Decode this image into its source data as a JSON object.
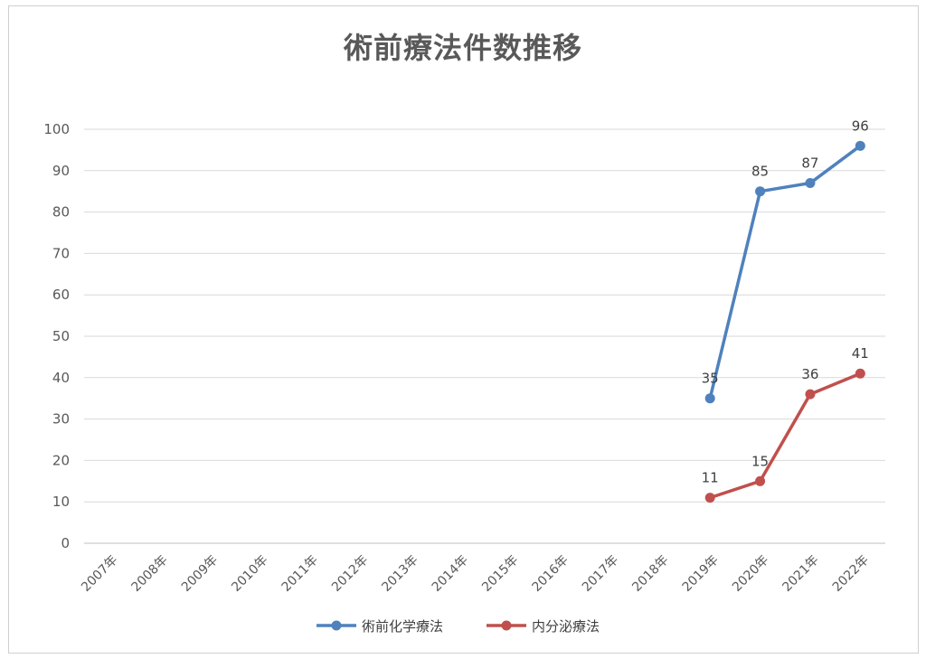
{
  "chart_data": {
    "type": "line",
    "title": "術前療法件数推移",
    "categories": [
      "2007年",
      "2008年",
      "2009年",
      "2010年",
      "2011年",
      "2012年",
      "2013年",
      "2014年",
      "2015年",
      "2016年",
      "2017年",
      "2018年",
      "2019年",
      "2020年",
      "2021年",
      "2022年"
    ],
    "series": [
      {
        "name": "術前化学療法",
        "color": "#4f81bd",
        "values": [
          null,
          null,
          null,
          null,
          null,
          null,
          null,
          null,
          null,
          null,
          null,
          null,
          35,
          85,
          87,
          96
        ]
      },
      {
        "name": "内分泌療法",
        "color": "#c0504d",
        "values": [
          null,
          null,
          null,
          null,
          null,
          null,
          null,
          null,
          null,
          null,
          null,
          null,
          11,
          15,
          36,
          41
        ]
      }
    ],
    "ylim": [
      0,
      100
    ],
    "yticks": [
      0,
      10,
      20,
      30,
      40,
      50,
      60,
      70,
      80,
      90,
      100
    ],
    "grid": true,
    "legend_position": "bottom",
    "data_labels": true
  }
}
